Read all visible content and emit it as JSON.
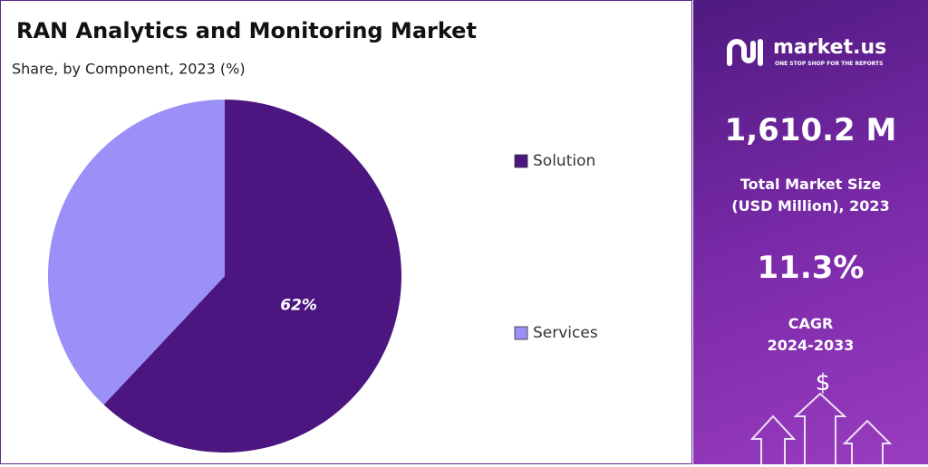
{
  "chart_data": {
    "type": "pie",
    "title": "RAN Analytics and Monitoring Market",
    "subtitle": "Share, by Component, 2023 (%)",
    "categories": [
      "Solution",
      "Services"
    ],
    "values": [
      62,
      38
    ],
    "value_labels": [
      "62%",
      null
    ],
    "colors": [
      "#4b1680",
      "#9a90f7"
    ],
    "legend_position": "right"
  },
  "panel": {
    "brand": "market.us",
    "tagline": "ONE STOP SHOP FOR THE REPORTS",
    "market_size": "1,610.2 M",
    "market_size_label_1": "Total Market Size",
    "market_size_label_2": "(USD Million), 2023",
    "cagr": "11.3%",
    "cagr_label_1": "CAGR",
    "cagr_label_2": "2024-2033",
    "icon_text": "$"
  }
}
